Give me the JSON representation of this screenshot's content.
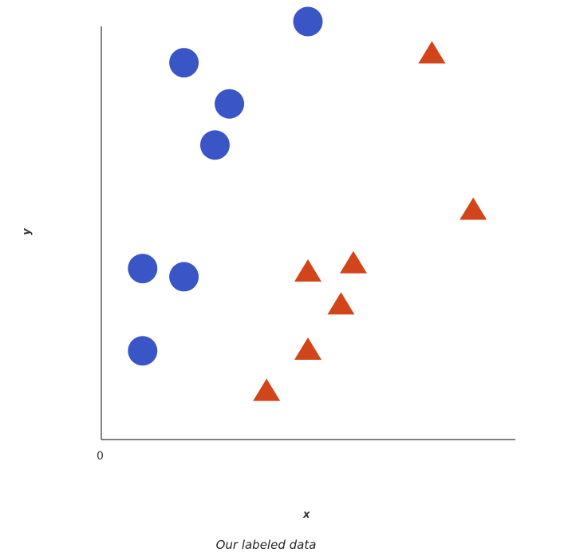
{
  "chart_data": {
    "type": "scatter",
    "xlabel": "x",
    "ylabel": "y",
    "origin_label": "0",
    "caption": "Our labeled data",
    "xlim": [
      0,
      10
    ],
    "ylim": [
      0,
      10
    ],
    "grid": false,
    "series": [
      {
        "marker": "circle",
        "color": "#3a55c6",
        "points": [
          {
            "x": 1.0,
            "y": 2.0
          },
          {
            "x": 1.0,
            "y": 4.0
          },
          {
            "x": 2.0,
            "y": 3.8
          },
          {
            "x": 2.0,
            "y": 9.0
          },
          {
            "x": 2.75,
            "y": 7.0
          },
          {
            "x": 3.1,
            "y": 8.0
          },
          {
            "x": 5.0,
            "y": 10.0
          }
        ]
      },
      {
        "marker": "triangle",
        "color": "#d2451b",
        "points": [
          {
            "x": 4.0,
            "y": 1.0
          },
          {
            "x": 5.0,
            "y": 2.0
          },
          {
            "x": 5.0,
            "y": 3.9
          },
          {
            "x": 5.8,
            "y": 3.1
          },
          {
            "x": 6.1,
            "y": 4.1
          },
          {
            "x": 8.0,
            "y": 9.2
          },
          {
            "x": 9.0,
            "y": 5.4
          }
        ]
      }
    ]
  }
}
